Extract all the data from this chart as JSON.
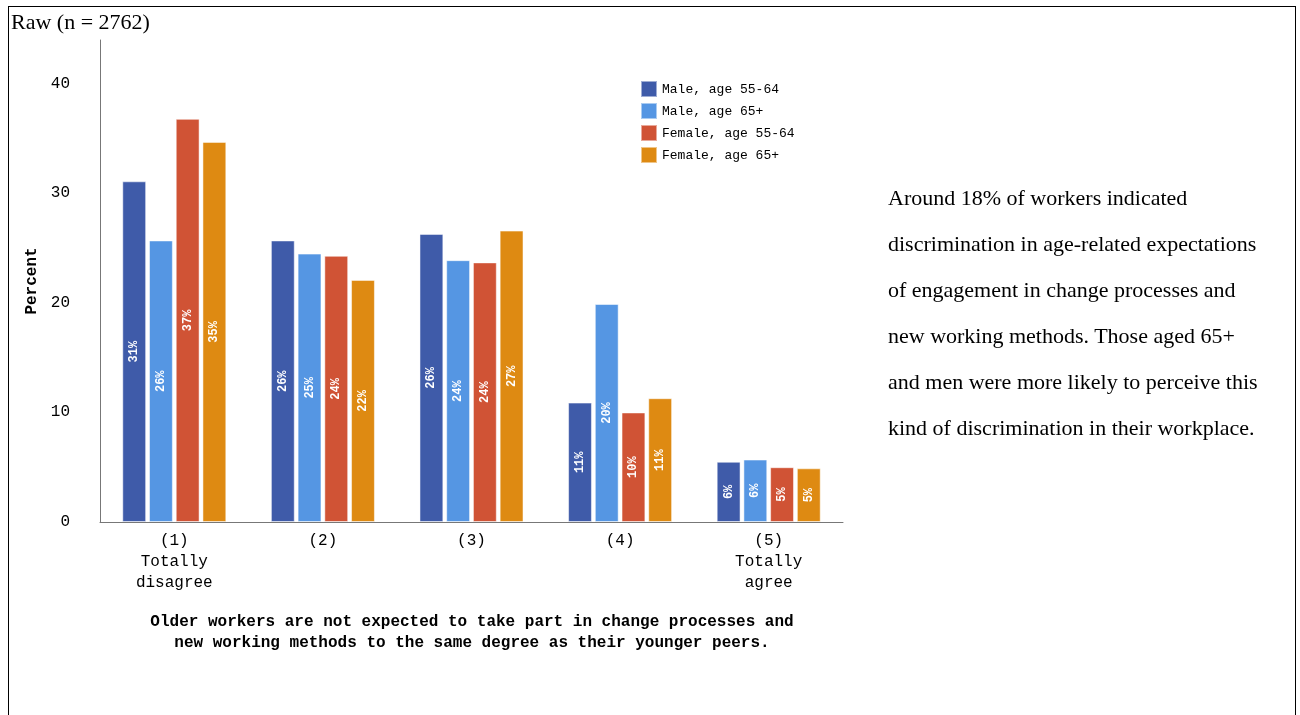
{
  "chart_data": {
    "type": "bar",
    "title": "Raw (n = 2762)",
    "categories": [
      "(1)\nTotally\ndisagree",
      "(2)",
      "(3)",
      "(4)",
      "(5)\nTotally\nagree"
    ],
    "xlabel": "Older workers are not expected to take part in change processes and new working methods to the same degree as their younger peers.",
    "ylabel": "Percent",
    "ylim": [
      0,
      44
    ],
    "yticks": [
      0,
      10,
      20,
      30,
      40
    ],
    "grid": false,
    "legend": "top right",
    "series": [
      {
        "name": "Male, age 55-64",
        "color": "#3f5ba9",
        "values": [
          31.1,
          25.7,
          26.3,
          10.9,
          5.5
        ],
        "value_labels": [
          "31%",
          "26%",
          "26%",
          "11%",
          "6%"
        ]
      },
      {
        "name": "Male, age 65+",
        "color": "#5596e3",
        "values": [
          25.7,
          24.5,
          23.9,
          19.9,
          5.7
        ],
        "value_labels": [
          "26%",
          "25%",
          "24%",
          "20%",
          "6%"
        ]
      },
      {
        "name": "Female, age 55-64",
        "color": "#d05335",
        "values": [
          36.8,
          24.3,
          23.7,
          10.0,
          5.0
        ],
        "value_labels": [
          "37%",
          "24%",
          "24%",
          "10%",
          "5%"
        ]
      },
      {
        "name": "Female, age 65+",
        "color": "#de8a12",
        "values": [
          34.7,
          22.1,
          26.6,
          11.3,
          4.9
        ],
        "value_labels": [
          "35%",
          "22%",
          "27%",
          "11%",
          "5%"
        ]
      }
    ],
    "annotations": [
      "Around 18% of workers indicated discrimination in age-related expectations of engagement in change processes and new working methods. Those aged 65+ and men were more likely to perceive this kind of discrimination in their workplace."
    ]
  }
}
